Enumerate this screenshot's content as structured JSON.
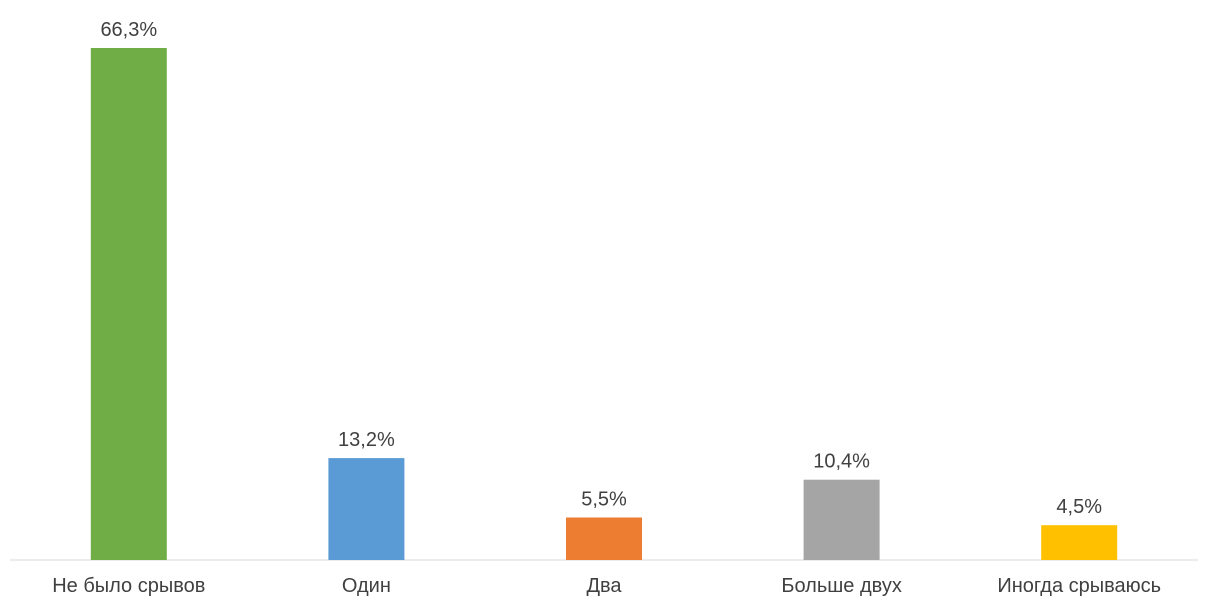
{
  "chart_data": {
    "type": "bar",
    "title": "",
    "xlabel": "",
    "ylabel": "",
    "categories": [
      "Не было срывов",
      "Один",
      "Два",
      "Больше двух",
      "Иногда срываюсь"
    ],
    "values": [
      66.3,
      13.2,
      5.5,
      10.4,
      4.5
    ],
    "value_labels": [
      "66,3%",
      "13,2%",
      "5,5%",
      "10,4%",
      "4,5%"
    ],
    "colors": [
      "#70AD47",
      "#5B9BD5",
      "#ED7D31",
      "#A5A5A5",
      "#FFC000"
    ],
    "ylim": [
      0,
      66.3
    ],
    "grid": false,
    "legend": "none",
    "axis_color": "#D9D9D9",
    "text_color": "#404040"
  }
}
